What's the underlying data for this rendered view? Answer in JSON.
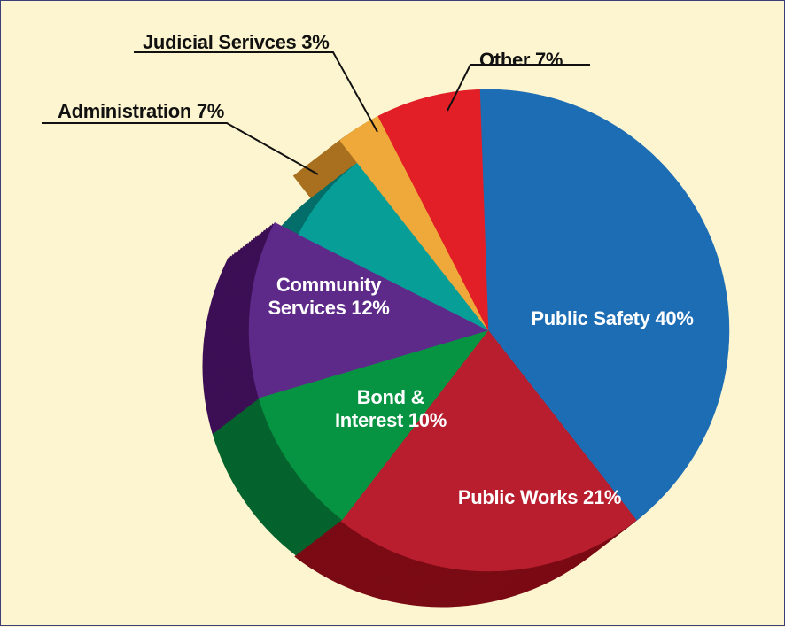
{
  "chart_data": {
    "type": "pie",
    "title": "",
    "slices": [
      {
        "label": "Public Safety",
        "value": 40,
        "display": "Public Safety 40%",
        "color": "#1d6db5",
        "side": "#0e4a85"
      },
      {
        "label": "Public Works",
        "value": 21,
        "display": "Public Works 21%",
        "color": "#b81e2d",
        "side": "#7a0a14"
      },
      {
        "label": "Bond & Interest",
        "value": 10,
        "display_lines": [
          "Bond &",
          "Interest 10%"
        ],
        "color": "#079442",
        "side": "#05632d"
      },
      {
        "label": "Community Services",
        "value": 12,
        "display_lines": [
          "Community",
          "Services 12%"
        ],
        "color": "#5e2a8a",
        "side": "#3c0f55"
      },
      {
        "label": "Administration",
        "value": 7,
        "display": "Administration 7%",
        "color": "#079e98",
        "side": "#046e6a"
      },
      {
        "label": "Judicial Serivces",
        "value": 3,
        "display": "Judicial Serivces 3%",
        "color": "#eea93a",
        "side": "#a8701f"
      },
      {
        "label": "Other",
        "value": 7,
        "display": "Other 7%",
        "color": "#e21f26",
        "side": "#9a1218"
      }
    ],
    "legend": "none",
    "label_style": "in-slice and callout labels"
  }
}
